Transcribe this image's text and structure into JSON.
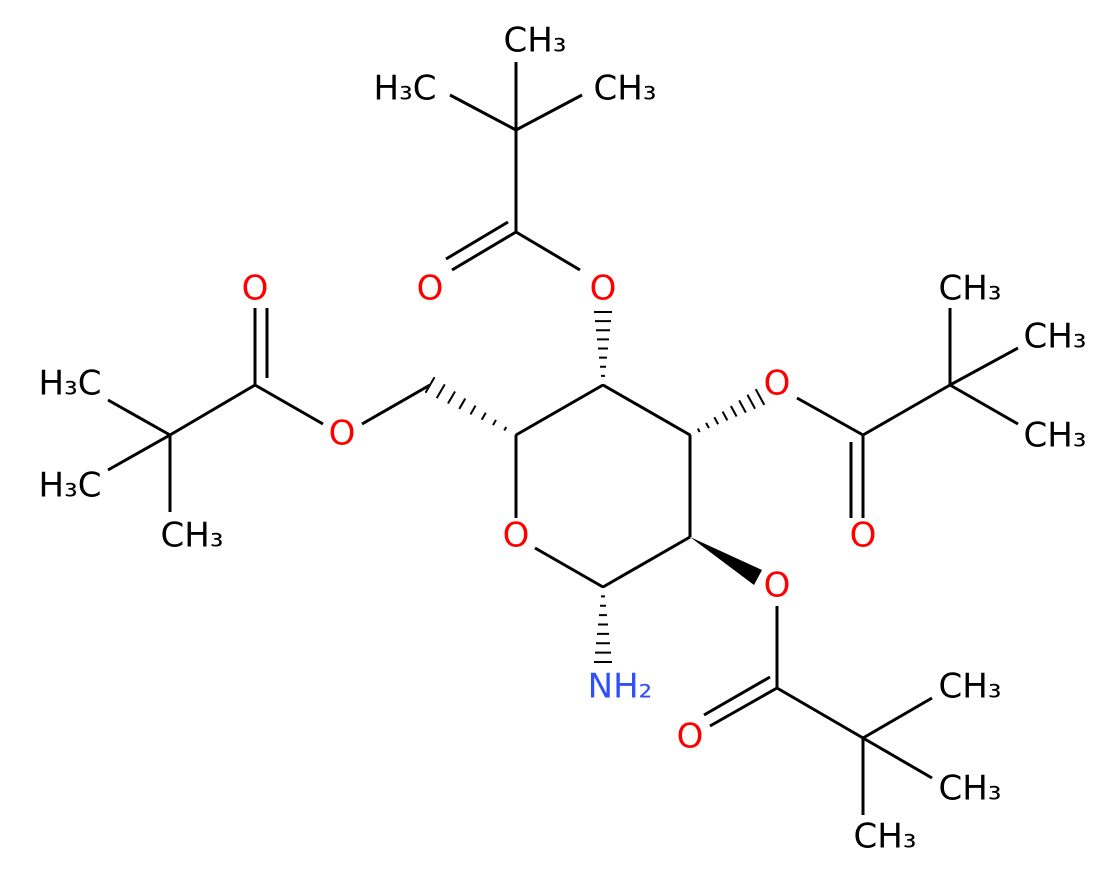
{
  "atoms": [
    {
      "label": "CH₃"
    },
    {
      "label": "H₃C"
    },
    {
      "label": "CH₃"
    },
    {
      "label": "O"
    },
    {
      "label": "O"
    },
    {
      "label": "O"
    },
    {
      "label": "O"
    },
    {
      "label": "H₃C"
    },
    {
      "label": "H₃C"
    },
    {
      "label": "CH₃"
    },
    {
      "label": "O"
    },
    {
      "label": "O"
    },
    {
      "label": "O"
    },
    {
      "label": "CH₃"
    },
    {
      "label": "CH₃"
    },
    {
      "label": "CH₃"
    },
    {
      "label": "O"
    },
    {
      "label": "O"
    },
    {
      "label": "CH₃"
    },
    {
      "label": "CH₃"
    },
    {
      "label": "CH₃"
    },
    {
      "label": "NH₂"
    }
  ]
}
